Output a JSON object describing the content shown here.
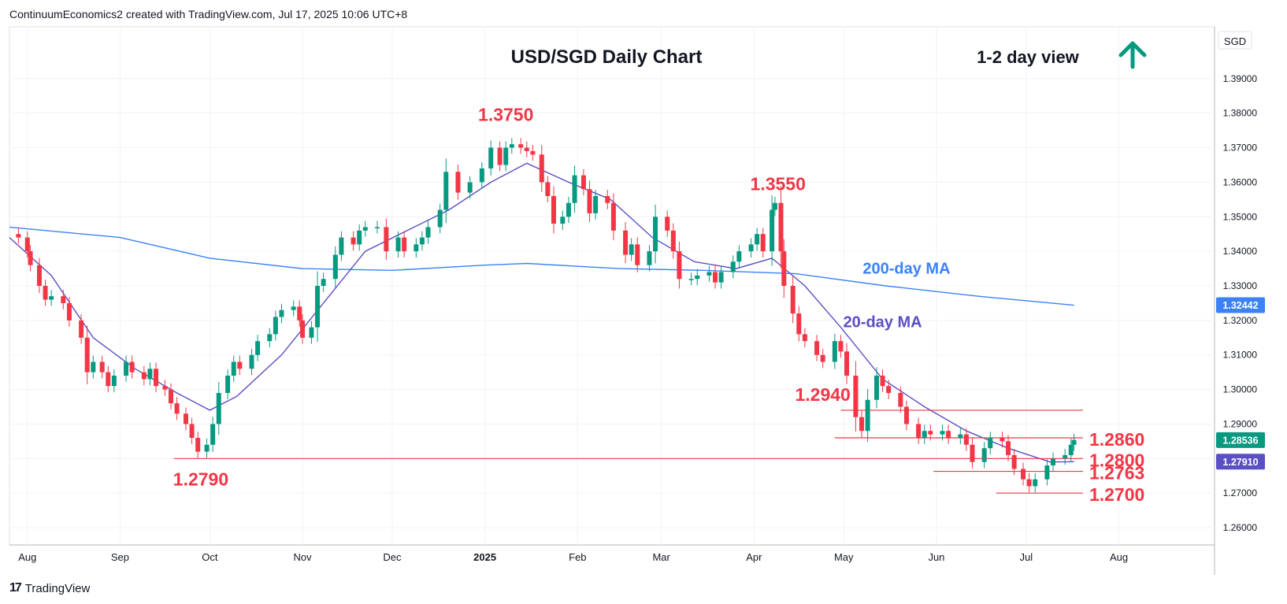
{
  "header": {
    "attribution": "ContinuumEconomics2 created with TradingView.com, Jul 17, 2025 10:06 UTC+8"
  },
  "footer": {
    "brand": "TradingView"
  },
  "colors": {
    "up": "#089981",
    "down": "#f23645",
    "ma20": "#5b4fc4",
    "ma200": "#3b82f6",
    "level": "#f23645",
    "arrow": "#089981"
  },
  "chart_data": {
    "type": "candlestick",
    "title": "USD/SGD Daily Chart",
    "view_label": "1-2 day view",
    "view_direction": "up",
    "currency": "SGD",
    "x_ticks": [
      "Aug",
      "Sep",
      "Oct",
      "Nov",
      "Dec",
      "2025",
      "Feb",
      "Mar",
      "Apr",
      "May",
      "Jun",
      "Jul",
      "Aug"
    ],
    "y_ticks": [
      "1.39000",
      "1.38000",
      "1.37000",
      "1.36000",
      "1.35000",
      "1.34000",
      "1.33000",
      "1.32000",
      "1.31000",
      "1.30000",
      "1.29000",
      "1.28000",
      "1.27000",
      "1.26000"
    ],
    "ylim": [
      1.255,
      1.405
    ],
    "x_range": [
      "2024-07-26",
      "2025-09-02"
    ],
    "price_tags": [
      {
        "label": "1.32442",
        "value": 1.32442,
        "color": "#3b82f6"
      },
      {
        "label": "1.28536",
        "value": 1.28536,
        "color": "#089981"
      },
      {
        "label": "1.27910",
        "value": 1.2791,
        "color": "#5b4fc4"
      }
    ],
    "annotations": [
      {
        "text": "1.3750",
        "date": "2025-01-08",
        "value": 1.375
      },
      {
        "text": "1.3550",
        "date": "2025-04-09",
        "value": 1.355
      },
      {
        "text": "1.2790",
        "date": "2024-09-28",
        "value": 1.279
      },
      {
        "text": "1.2940",
        "date": "2025-04-24",
        "value": 1.294
      },
      {
        "text": "1.2860",
        "date": "2025-07-20",
        "value": 1.286
      },
      {
        "text": "1.2800",
        "date": "2025-07-20",
        "value": 1.28
      },
      {
        "text": "1.2763",
        "date": "2025-07-20",
        "value": 1.2763
      },
      {
        "text": "1.2700",
        "date": "2025-07-20",
        "value": 1.27
      }
    ],
    "ma_labels": [
      {
        "text": "200-day MA",
        "date": "2025-05-22",
        "value": 1.3335
      },
      {
        "text": "20-day MA",
        "date": "2025-05-14",
        "value": 1.318
      }
    ],
    "levels": [
      {
        "value": 1.294,
        "from": "2025-04-30",
        "to": "2025-07-20"
      },
      {
        "value": 1.286,
        "from": "2025-04-28",
        "to": "2025-07-20"
      },
      {
        "value": 1.28,
        "from": "2024-09-19",
        "to": "2025-07-20"
      },
      {
        "value": 1.2763,
        "from": "2025-05-31",
        "to": "2025-07-20"
      },
      {
        "value": 1.27,
        "from": "2025-06-21",
        "to": "2025-07-20"
      }
    ],
    "closes": [
      [
        "2024-07-26",
        1.345
      ],
      [
        "2024-07-29",
        1.344
      ],
      [
        "2024-08-01",
        1.34
      ],
      [
        "2024-08-02",
        1.336
      ],
      [
        "2024-08-05",
        1.33
      ],
      [
        "2024-08-07",
        1.326
      ],
      [
        "2024-08-09",
        1.327
      ],
      [
        "2024-08-13",
        1.325
      ],
      [
        "2024-08-15",
        1.32
      ],
      [
        "2024-08-19",
        1.315
      ],
      [
        "2024-08-21",
        1.305
      ],
      [
        "2024-08-23",
        1.308
      ],
      [
        "2024-08-26",
        1.305
      ],
      [
        "2024-08-28",
        1.301
      ],
      [
        "2024-08-30",
        1.304
      ],
      [
        "2024-09-03",
        1.308
      ],
      [
        "2024-09-05",
        1.305
      ],
      [
        "2024-09-09",
        1.303
      ],
      [
        "2024-09-11",
        1.306
      ],
      [
        "2024-09-13",
        1.301
      ],
      [
        "2024-09-16",
        1.3
      ],
      [
        "2024-09-18",
        1.296
      ],
      [
        "2024-09-20",
        1.293
      ],
      [
        "2024-09-23",
        1.29
      ],
      [
        "2024-09-25",
        1.286
      ],
      [
        "2024-09-27",
        1.282
      ],
      [
        "2024-09-30",
        1.284
      ],
      [
        "2024-10-02",
        1.29
      ],
      [
        "2024-10-04",
        1.299
      ],
      [
        "2024-10-07",
        1.304
      ],
      [
        "2024-10-09",
        1.308
      ],
      [
        "2024-10-11",
        1.306
      ],
      [
        "2024-10-15",
        1.31
      ],
      [
        "2024-10-17",
        1.314
      ],
      [
        "2024-10-21",
        1.316
      ],
      [
        "2024-10-23",
        1.321
      ],
      [
        "2024-10-25",
        1.323
      ],
      [
        "2024-10-29",
        1.324
      ],
      [
        "2024-10-31",
        1.32
      ],
      [
        "2024-11-01",
        1.315
      ],
      [
        "2024-11-04",
        1.318
      ],
      [
        "2024-11-06",
        1.33
      ],
      [
        "2024-11-08",
        1.332
      ],
      [
        "2024-11-12",
        1.339
      ],
      [
        "2024-11-14",
        1.344
      ],
      [
        "2024-11-18",
        1.342
      ],
      [
        "2024-11-20",
        1.346
      ],
      [
        "2024-11-22",
        1.347
      ],
      [
        "2024-11-26",
        1.347
      ],
      [
        "2024-11-29",
        1.34
      ],
      [
        "2024-12-03",
        1.344
      ],
      [
        "2024-12-05",
        1.34
      ],
      [
        "2024-12-09",
        1.342
      ],
      [
        "2024-12-11",
        1.344
      ],
      [
        "2024-12-13",
        1.347
      ],
      [
        "2024-12-17",
        1.352
      ],
      [
        "2024-12-19",
        1.363
      ],
      [
        "2024-12-23",
        1.357
      ],
      [
        "2024-12-27",
        1.36
      ],
      [
        "2024-12-31",
        1.364
      ],
      [
        "2025-01-03",
        1.37
      ],
      [
        "2025-01-06",
        1.365
      ],
      [
        "2025-01-08",
        1.37
      ],
      [
        "2025-01-10",
        1.371
      ],
      [
        "2025-01-13",
        1.37
      ],
      [
        "2025-01-15",
        1.369
      ],
      [
        "2025-01-17",
        1.368
      ],
      [
        "2025-01-20",
        1.36
      ],
      [
        "2025-01-22",
        1.356
      ],
      [
        "2025-01-24",
        1.348
      ],
      [
        "2025-01-27",
        1.35
      ],
      [
        "2025-01-29",
        1.354
      ],
      [
        "2025-01-31",
        1.362
      ],
      [
        "2025-02-03",
        1.358
      ],
      [
        "2025-02-05",
        1.351
      ],
      [
        "2025-02-07",
        1.356
      ],
      [
        "2025-02-11",
        1.354
      ],
      [
        "2025-02-13",
        1.346
      ],
      [
        "2025-02-17",
        1.339
      ],
      [
        "2025-02-19",
        1.342
      ],
      [
        "2025-02-21",
        1.336
      ],
      [
        "2025-02-25",
        1.34
      ],
      [
        "2025-02-27",
        1.35
      ],
      [
        "2025-03-03",
        1.346
      ],
      [
        "2025-03-05",
        1.34
      ],
      [
        "2025-03-07",
        1.332
      ],
      [
        "2025-03-11",
        1.332
      ],
      [
        "2025-03-13",
        1.333
      ],
      [
        "2025-03-17",
        1.334
      ],
      [
        "2025-03-19",
        1.331
      ],
      [
        "2025-03-21",
        1.334
      ],
      [
        "2025-03-25",
        1.337
      ],
      [
        "2025-03-27",
        1.34
      ],
      [
        "2025-03-31",
        1.342
      ],
      [
        "2025-04-02",
        1.345
      ],
      [
        "2025-04-04",
        1.34
      ],
      [
        "2025-04-07",
        1.352
      ],
      [
        "2025-04-08",
        1.354
      ],
      [
        "2025-04-10",
        1.34
      ],
      [
        "2025-04-11",
        1.33
      ],
      [
        "2025-04-14",
        1.322
      ],
      [
        "2025-04-16",
        1.316
      ],
      [
        "2025-04-18",
        1.314
      ],
      [
        "2025-04-22",
        1.31
      ],
      [
        "2025-04-24",
        1.308
      ],
      [
        "2025-04-28",
        1.314
      ],
      [
        "2025-04-30",
        1.311
      ],
      [
        "2025-05-02",
        1.304
      ],
      [
        "2025-05-05",
        1.292
      ],
      [
        "2025-05-07",
        1.288
      ],
      [
        "2025-05-09",
        1.297
      ],
      [
        "2025-05-12",
        1.304
      ],
      [
        "2025-05-14",
        1.301
      ],
      [
        "2025-05-16",
        1.299
      ],
      [
        "2025-05-20",
        1.295
      ],
      [
        "2025-05-22",
        1.29
      ],
      [
        "2025-05-26",
        1.286
      ],
      [
        "2025-05-28",
        1.288
      ],
      [
        "2025-05-30",
        1.287
      ],
      [
        "2025-06-03",
        1.288
      ],
      [
        "2025-06-05",
        1.286
      ],
      [
        "2025-06-09",
        1.287
      ],
      [
        "2025-06-11",
        1.284
      ],
      [
        "2025-06-13",
        1.279
      ],
      [
        "2025-06-17",
        1.283
      ],
      [
        "2025-06-19",
        1.286
      ],
      [
        "2025-06-23",
        1.285
      ],
      [
        "2025-06-25",
        1.281
      ],
      [
        "2025-06-27",
        1.277
      ],
      [
        "2025-06-30",
        1.274
      ],
      [
        "2025-07-02",
        1.272
      ],
      [
        "2025-07-04",
        1.274
      ],
      [
        "2025-07-08",
        1.278
      ],
      [
        "2025-07-10",
        1.28
      ],
      [
        "2025-07-14",
        1.281
      ],
      [
        "2025-07-16",
        1.284
      ],
      [
        "2025-07-17",
        1.2854
      ]
    ],
    "ma20": [
      [
        "2024-07-26",
        1.344
      ],
      [
        "2024-08-09",
        1.333
      ],
      [
        "2024-08-23",
        1.315
      ],
      [
        "2024-09-06",
        1.306
      ],
      [
        "2024-09-20",
        1.299
      ],
      [
        "2024-10-01",
        1.294
      ],
      [
        "2024-10-10",
        1.298
      ],
      [
        "2024-10-25",
        1.31
      ],
      [
        "2024-11-08",
        1.325
      ],
      [
        "2024-11-22",
        1.34
      ],
      [
        "2024-12-06",
        1.346
      ],
      [
        "2024-12-20",
        1.352
      ],
      [
        "2025-01-03",
        1.36
      ],
      [
        "2025-01-15",
        1.3655
      ],
      [
        "2025-01-29",
        1.36
      ],
      [
        "2025-02-12",
        1.355
      ],
      [
        "2025-02-26",
        1.344
      ],
      [
        "2025-03-12",
        1.337
      ],
      [
        "2025-03-26",
        1.335
      ],
      [
        "2025-04-07",
        1.338
      ],
      [
        "2025-04-18",
        1.33
      ],
      [
        "2025-04-30",
        1.318
      ],
      [
        "2025-05-14",
        1.303
      ],
      [
        "2025-05-28",
        1.295
      ],
      [
        "2025-06-11",
        1.288
      ],
      [
        "2025-06-25",
        1.283
      ],
      [
        "2025-07-09",
        1.279
      ],
      [
        "2025-07-17",
        1.2791
      ]
    ],
    "ma200": [
      [
        "2024-07-26",
        1.347
      ],
      [
        "2024-09-01",
        1.344
      ],
      [
        "2024-10-01",
        1.338
      ],
      [
        "2024-11-01",
        1.335
      ],
      [
        "2024-12-01",
        1.3345
      ],
      [
        "2025-01-01",
        1.336
      ],
      [
        "2025-01-15",
        1.3365
      ],
      [
        "2025-02-15",
        1.335
      ],
      [
        "2025-03-15",
        1.3345
      ],
      [
        "2025-04-15",
        1.3335
      ],
      [
        "2025-05-15",
        1.33
      ],
      [
        "2025-06-15",
        1.327
      ],
      [
        "2025-07-17",
        1.3244
      ]
    ]
  }
}
